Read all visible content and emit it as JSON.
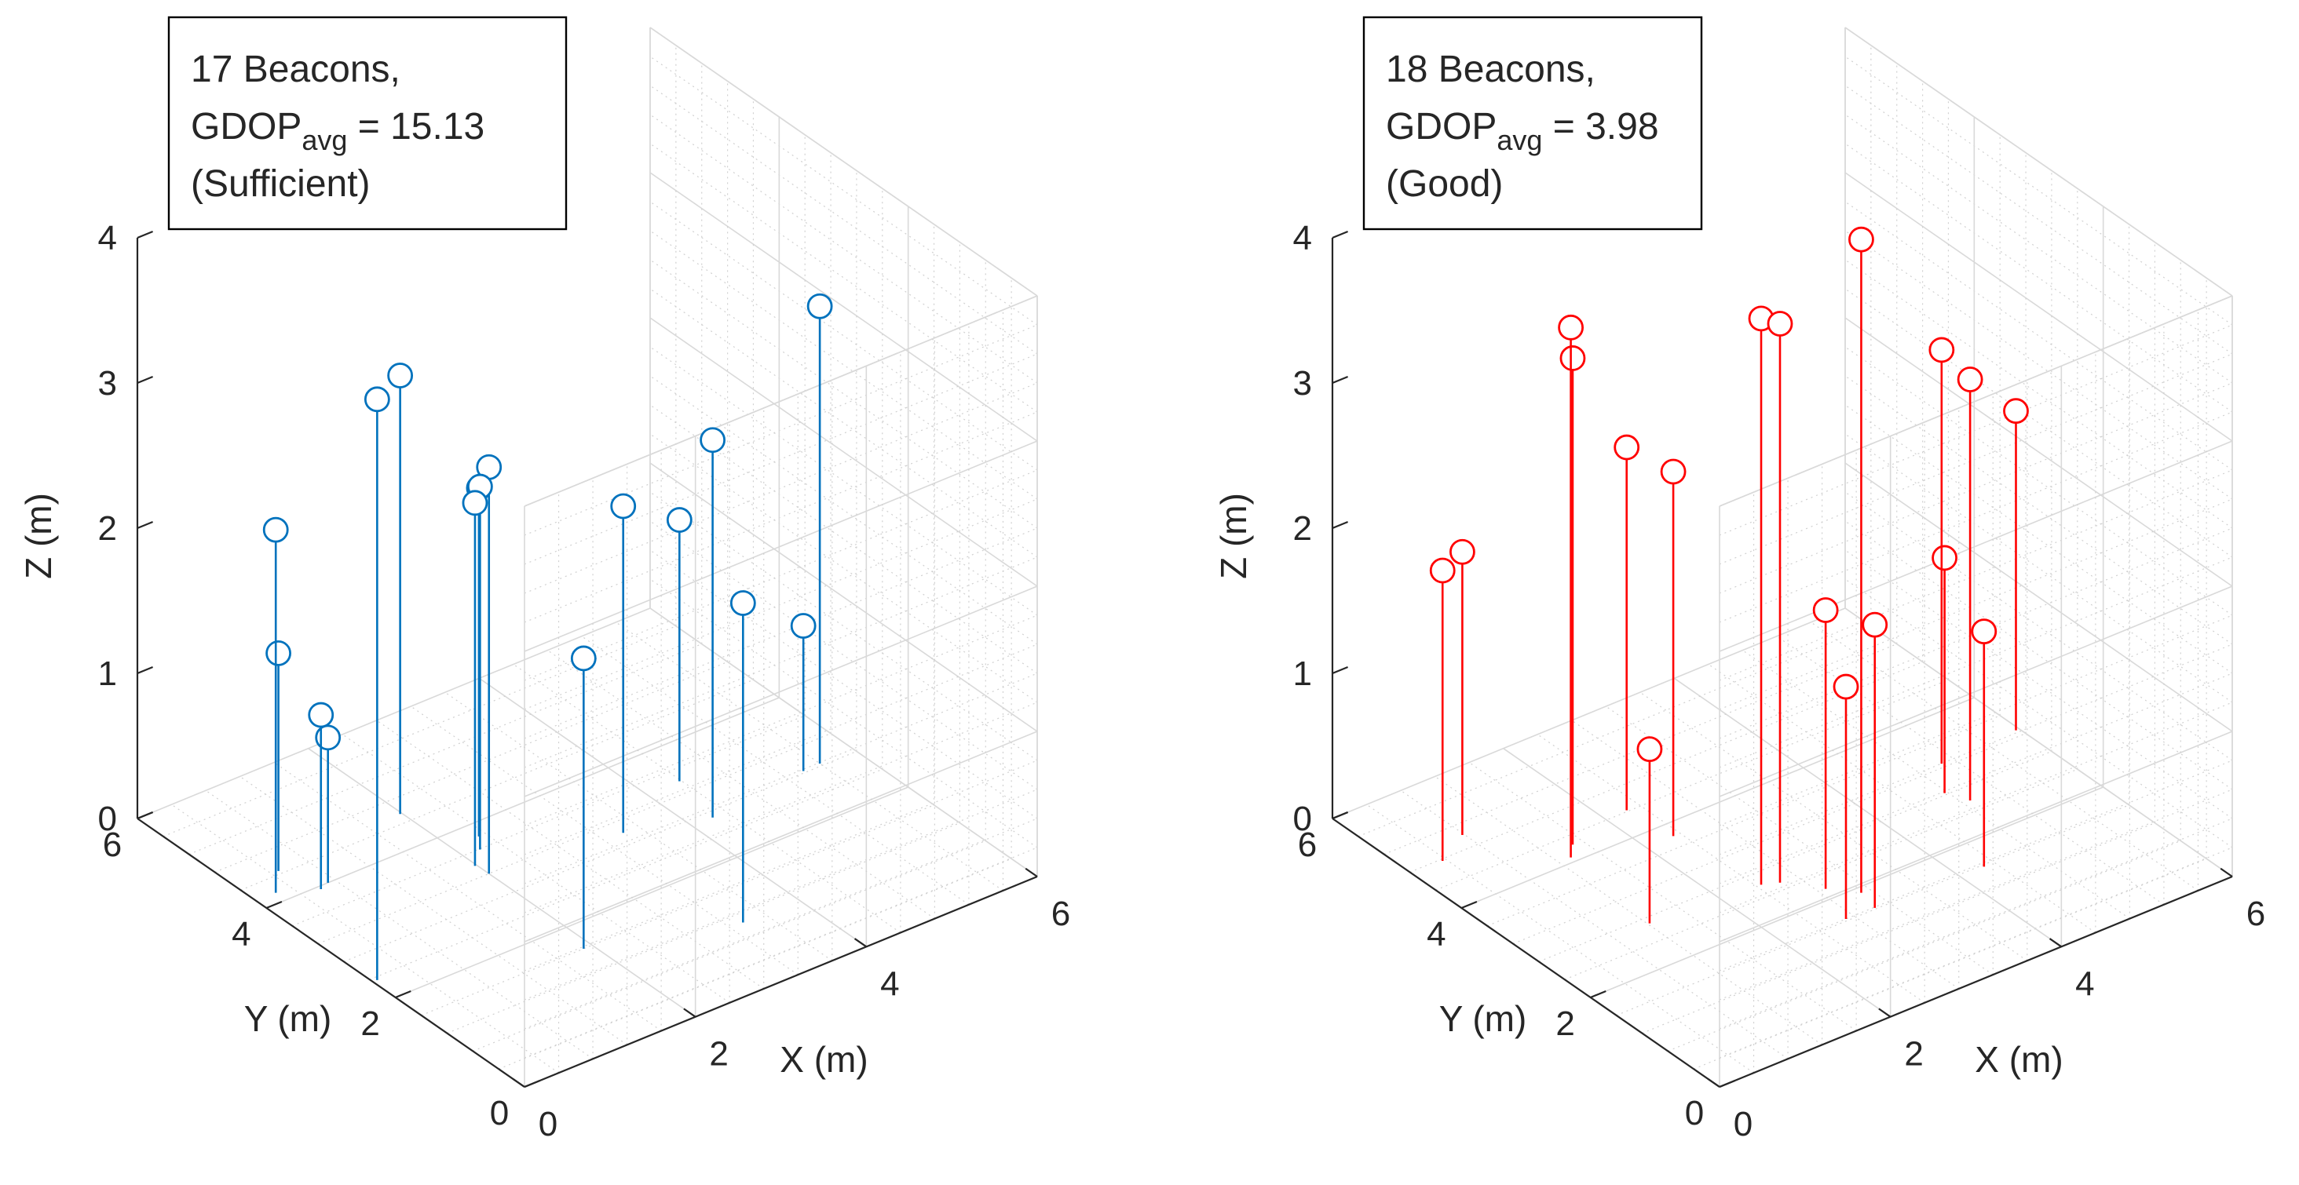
{
  "chart_data": [
    {
      "type": "stem3",
      "name": "left",
      "annotation": {
        "line1": "17 Beacons,",
        "gdop_base": "GDOP",
        "gdop_sub": "avg",
        "gdop_value": " = 15.13",
        "line3": "(Sufficient)"
      },
      "xlabel": "X (m)",
      "ylabel": "Y (m)",
      "zlabel": "Z (m)",
      "xlim": [
        0,
        6
      ],
      "ylim": [
        0,
        6
      ],
      "zlim": [
        0,
        4
      ],
      "xticks": [
        0,
        2,
        4,
        6
      ],
      "yticks": [
        0,
        2,
        4,
        6
      ],
      "zticks": [
        0,
        1,
        2,
        3,
        4
      ],
      "marker_color": "#0072BD",
      "points": [
        {
          "x": 0.72,
          "y": 4.0,
          "z": 1.0
        },
        {
          "x": 0.6,
          "y": 3.95,
          "z": 1.2
        },
        {
          "x": 0.48,
          "y": 4.45,
          "z": 1.5
        },
        {
          "x": 0.23,
          "y": 4.16,
          "z": 2.5
        },
        {
          "x": 0.05,
          "y": 2.35,
          "z": 4.0
        },
        {
          "x": 1.98,
          "y": 4.55,
          "z": 3.02
        },
        {
          "x": 2.0,
          "y": 3.2,
          "z": 2.8
        },
        {
          "x": 2.32,
          "y": 3.78,
          "z": 2.4
        },
        {
          "x": 2.19,
          "y": 3.59,
          "z": 2.5
        },
        {
          "x": 1.98,
          "y": 3.39,
          "z": 2.5
        },
        {
          "x": 1.9,
          "y": 1.6,
          "z": 2.0
        },
        {
          "x": 3.35,
          "y": 1.05,
          "z": 2.2
        },
        {
          "x": 3.42,
          "y": 3.0,
          "z": 2.25
        },
        {
          "x": 4.24,
          "y": 2.7,
          "z": 2.6
        },
        {
          "x": 4.38,
          "y": 3.4,
          "z": 1.8
        },
        {
          "x": 5.4,
          "y": 2.83,
          "z": 1.0
        },
        {
          "x": 5.6,
          "y": 2.84,
          "z": 3.15
        }
      ]
    },
    {
      "type": "stem3",
      "name": "right",
      "annotation": {
        "line1": "18 Beacons,",
        "gdop_base": "GDOP",
        "gdop_sub": "avg",
        "gdop_value": " = 3.98",
        "line3": "(Good)"
      },
      "xlabel": "X (m)",
      "ylabel": "Y (m)",
      "zlabel": "Z (m)",
      "xlim": [
        0,
        6
      ],
      "ylim": [
        0,
        6
      ],
      "zlim": [
        0,
        4
      ],
      "xticks": [
        0,
        2,
        4,
        6
      ],
      "yticks": [
        0,
        2,
        4,
        6
      ],
      "zticks": [
        0,
        1,
        2,
        3,
        4
      ],
      "marker_color": "#FF0000",
      "points": [
        {
          "x": 0.36,
          "y": 4.77,
          "z": 2.0
        },
        {
          "x": 0.78,
          "y": 5.02,
          "z": 1.95
        },
        {
          "x": 1.22,
          "y": 2.7,
          "z": 1.2
        },
        {
          "x": 1.49,
          "y": 4.25,
          "z": 3.35
        },
        {
          "x": 1.34,
          "y": 4.08,
          "z": 3.65
        },
        {
          "x": 2.71,
          "y": 1.63,
          "z": 1.6
        },
        {
          "x": 3.04,
          "y": 1.62,
          "z": 1.95
        },
        {
          "x": 2.88,
          "y": 2.17,
          "z": 1.92
        },
        {
          "x": 2.32,
          "y": 3.79,
          "z": 2.51
        },
        {
          "x": 2.25,
          "y": 4.42,
          "z": 2.5
        },
        {
          "x": 2.45,
          "y": 2.6,
          "z": 3.9
        },
        {
          "x": 2.61,
          "y": 2.52,
          "z": 3.85
        },
        {
          "x": 3.1,
          "y": 1.91,
          "z": 4.5
        },
        {
          "x": 4.28,
          "y": 1.57,
          "z": 1.62
        },
        {
          "x": 4.77,
          "y": 2.83,
          "z": 1.62
        },
        {
          "x": 4.88,
          "y": 2.58,
          "z": 2.9
        },
        {
          "x": 5.06,
          "y": 3.26,
          "z": 2.85
        },
        {
          "x": 5.96,
          "y": 3.3,
          "z": 2.2
        }
      ]
    }
  ]
}
